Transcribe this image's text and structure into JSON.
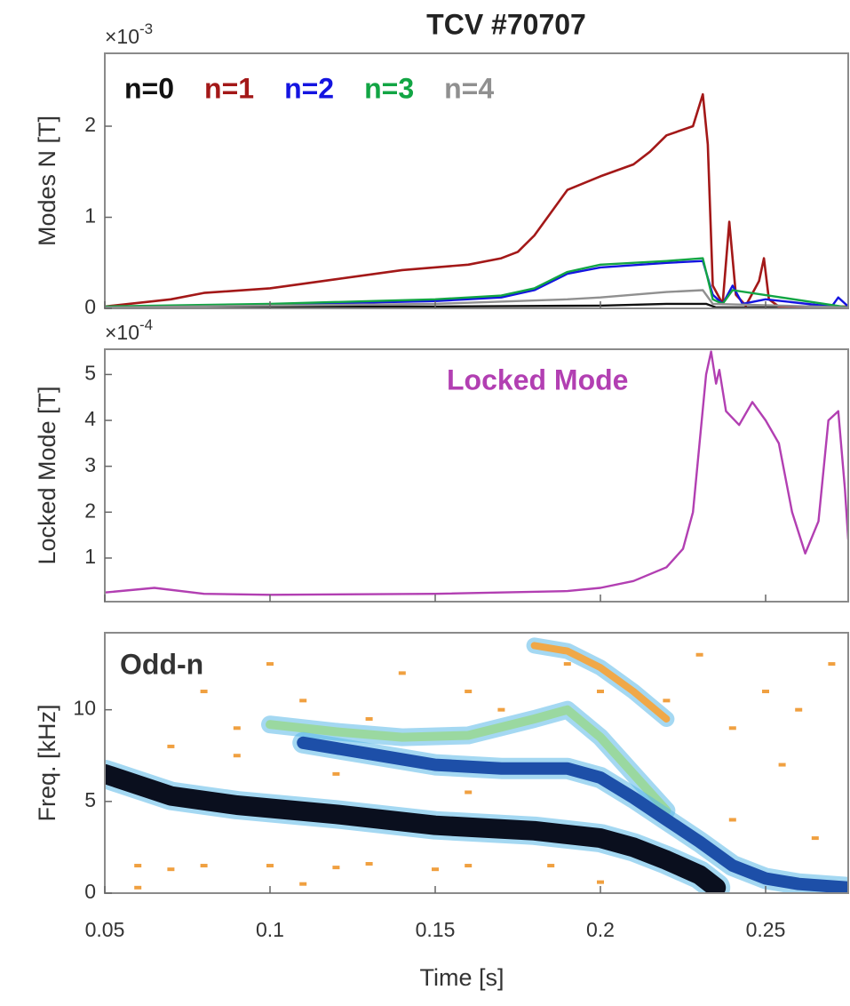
{
  "chart_data": [
    {
      "type": "line",
      "title": "TCV #70707",
      "ylabel": "Modes N [T]",
      "y_multiplier": {
        "base": "×10",
        "exponent": "-3"
      },
      "xlim": [
        0.05,
        0.275
      ],
      "ylim": [
        0,
        2.8
      ],
      "yticks": [
        0,
        1,
        2
      ],
      "series": [
        {
          "name": "n=0",
          "color": "#111111",
          "x": [
            0.05,
            0.1,
            0.15,
            0.2,
            0.22,
            0.232,
            0.235,
            0.275
          ],
          "values": [
            0.01,
            0.02,
            0.02,
            0.03,
            0.05,
            0.05,
            0.01,
            0.01
          ]
        },
        {
          "name": "n=1",
          "color": "#a31818",
          "x": [
            0.05,
            0.07,
            0.08,
            0.1,
            0.12,
            0.14,
            0.16,
            0.17,
            0.175,
            0.18,
            0.185,
            0.19,
            0.2,
            0.21,
            0.215,
            0.22,
            0.228,
            0.231,
            0.2325,
            0.234,
            0.237,
            0.239,
            0.241,
            0.244,
            0.248,
            0.2495,
            0.251,
            0.254,
            0.275
          ],
          "values": [
            0.02,
            0.1,
            0.17,
            0.22,
            0.32,
            0.42,
            0.48,
            0.55,
            0.62,
            0.8,
            1.05,
            1.3,
            1.45,
            1.58,
            1.72,
            1.9,
            2.0,
            2.35,
            1.8,
            0.25,
            0.05,
            0.95,
            0.15,
            0.03,
            0.3,
            0.55,
            0.1,
            0.02,
            0.02
          ]
        },
        {
          "name": "n=2",
          "color": "#1414e0",
          "x": [
            0.05,
            0.1,
            0.15,
            0.17,
            0.18,
            0.19,
            0.2,
            0.22,
            0.231,
            0.234,
            0.237,
            0.24,
            0.243,
            0.25,
            0.27,
            0.272,
            0.275
          ],
          "values": [
            0.01,
            0.04,
            0.08,
            0.12,
            0.2,
            0.38,
            0.45,
            0.5,
            0.52,
            0.15,
            0.05,
            0.25,
            0.05,
            0.1,
            0.02,
            0.12,
            0.02
          ]
        },
        {
          "name": "n=3",
          "color": "#12a544",
          "x": [
            0.05,
            0.1,
            0.15,
            0.17,
            0.18,
            0.19,
            0.2,
            0.22,
            0.231,
            0.234,
            0.237,
            0.24,
            0.275
          ],
          "values": [
            0.02,
            0.05,
            0.1,
            0.14,
            0.22,
            0.4,
            0.48,
            0.52,
            0.55,
            0.1,
            0.05,
            0.2,
            0.01
          ]
        },
        {
          "name": "n=4",
          "color": "#909090",
          "x": [
            0.05,
            0.15,
            0.19,
            0.2,
            0.22,
            0.231,
            0.234,
            0.275
          ],
          "values": [
            0.01,
            0.05,
            0.1,
            0.12,
            0.18,
            0.2,
            0.05,
            0.01
          ]
        }
      ]
    },
    {
      "type": "line",
      "ylabel": "Locked Mode [T]",
      "y_multiplier": {
        "base": "×10",
        "exponent": "-4"
      },
      "xlim": [
        0.05,
        0.275
      ],
      "ylim": [
        0.05,
        5.55
      ],
      "yticks": [
        1,
        2,
        3,
        4,
        5
      ],
      "series": [
        {
          "name": "Locked Mode",
          "color": "#b23fb2",
          "x": [
            0.05,
            0.065,
            0.08,
            0.1,
            0.15,
            0.19,
            0.2,
            0.21,
            0.22,
            0.225,
            0.228,
            0.23,
            0.232,
            0.2335,
            0.235,
            0.236,
            0.238,
            0.242,
            0.246,
            0.25,
            0.254,
            0.258,
            0.262,
            0.266,
            0.269,
            0.272,
            0.274,
            0.275
          ],
          "values": [
            0.25,
            0.35,
            0.22,
            0.2,
            0.22,
            0.28,
            0.35,
            0.5,
            0.8,
            1.2,
            2.0,
            3.5,
            5.0,
            5.5,
            4.8,
            5.1,
            4.2,
            3.9,
            4.4,
            4.0,
            3.5,
            2.0,
            1.1,
            1.8,
            4.0,
            4.2,
            2.5,
            1.4
          ]
        }
      ]
    },
    {
      "type": "spectrogram",
      "annotation": "Odd-n",
      "ylabel": "Freq. [kHz]",
      "xlabel": "Time [s]",
      "xlim": [
        0.05,
        0.275
      ],
      "xticks": [
        0.05,
        0.1,
        0.15,
        0.2,
        0.25
      ],
      "ylim": [
        0,
        14.2
      ],
      "yticks": [
        0,
        5,
        10
      ],
      "series": [
        {
          "color": "#0a0f1e",
          "x": [
            0.05,
            0.07,
            0.09,
            0.12,
            0.15,
            0.18,
            0.2,
            0.21,
            0.22,
            0.23,
            0.235
          ],
          "values": [
            6.5,
            5.3,
            4.8,
            4.3,
            3.7,
            3.4,
            3.0,
            2.5,
            1.8,
            1.0,
            0.3
          ]
        },
        {
          "color": "#1d4fa8",
          "x": [
            0.11,
            0.13,
            0.15,
            0.17,
            0.19,
            0.2,
            0.21,
            0.22,
            0.23,
            0.24,
            0.25,
            0.26,
            0.275
          ],
          "values": [
            8.2,
            7.6,
            7.0,
            6.8,
            6.8,
            6.3,
            5.2,
            4.0,
            2.8,
            1.5,
            0.8,
            0.5,
            0.3
          ]
        },
        {
          "color": "#9ad8a0",
          "x": [
            0.1,
            0.12,
            0.14,
            0.16,
            0.18,
            0.19,
            0.2,
            0.21,
            0.22
          ],
          "values": [
            9.2,
            8.8,
            8.5,
            8.6,
            9.5,
            10.0,
            8.5,
            6.5,
            4.5
          ]
        },
        {
          "color": "#f0a848",
          "x": [
            0.18,
            0.19,
            0.2,
            0.21,
            0.22
          ],
          "values": [
            13.5,
            13.2,
            12.3,
            11,
            9.5
          ]
        }
      ],
      "points": {
        "color": "#f0a040",
        "x": [
          0.06,
          0.07,
          0.08,
          0.1,
          0.12,
          0.13,
          0.15,
          0.16,
          0.09,
          0.11,
          0.13,
          0.14,
          0.16,
          0.17,
          0.19,
          0.1,
          0.08,
          0.2,
          0.22,
          0.24,
          0.25,
          0.26,
          0.27,
          0.12,
          0.09,
          0.16,
          0.07,
          0.23,
          0.255,
          0.265,
          0.24,
          0.11,
          0.2,
          0.185,
          0.06
        ],
        "y": [
          1.5,
          1.3,
          1.5,
          1.5,
          1.4,
          1.6,
          1.3,
          1.5,
          9,
          10.5,
          9.5,
          12,
          11,
          10,
          12.5,
          12.5,
          11,
          11,
          10.5,
          9,
          11,
          10,
          12.5,
          6.5,
          7.5,
          5.5,
          8,
          13,
          7,
          3,
          4,
          0.5,
          0.6,
          1.5,
          0.3
        ]
      }
    }
  ]
}
